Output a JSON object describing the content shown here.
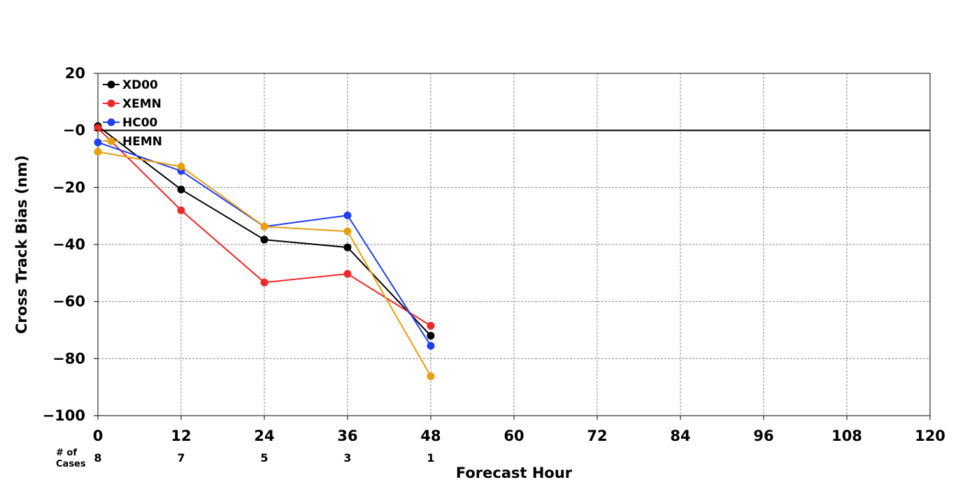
{
  "chart_data": {
    "type": "line",
    "title": "",
    "xlabel": "Forecast Hour",
    "ylabel": "Cross Track Bias (nm)",
    "xlim": [
      0,
      120
    ],
    "ylim": [
      -100,
      20
    ],
    "x_ticks": [
      0,
      12,
      24,
      36,
      48,
      60,
      72,
      84,
      96,
      108,
      120
    ],
    "x_tick_labels": [
      "0",
      "12",
      "24",
      "36",
      "48",
      "60",
      "72",
      "84",
      "96",
      "108",
      "120"
    ],
    "y_ticks": [
      20,
      0,
      -20,
      -40,
      -60,
      -80,
      -100
    ],
    "y_tick_labels": [
      "20",
      "−0",
      "−20",
      "−40",
      "−60",
      "−80",
      "−100"
    ],
    "grid": true,
    "zero_line": true,
    "legend_position": "top-left",
    "x": [
      0,
      12,
      24,
      36,
      48
    ],
    "series": [
      {
        "name": "XD00",
        "color": "#000000",
        "values": [
          1.5,
          -20.7,
          -38.3,
          -41.0,
          -72.0
        ]
      },
      {
        "name": "XEMN",
        "color": "#f02828",
        "values": [
          0.8,
          -28.0,
          -53.3,
          -50.3,
          -68.5
        ]
      },
      {
        "name": "HC00",
        "color": "#2040f8",
        "values": [
          -4.2,
          -14.2,
          -33.7,
          -29.8,
          -75.5
        ]
      },
      {
        "name": "HEMN",
        "color": "#e8a010",
        "values": [
          -7.5,
          -12.7,
          -33.7,
          -35.4,
          -86.2
        ]
      }
    ],
    "cases": {
      "title_line1": "# of",
      "title_line2": "Cases",
      "hours": [
        0,
        12,
        24,
        36,
        48
      ],
      "counts": [
        "8",
        "7",
        "5",
        "3",
        "1"
      ]
    }
  }
}
